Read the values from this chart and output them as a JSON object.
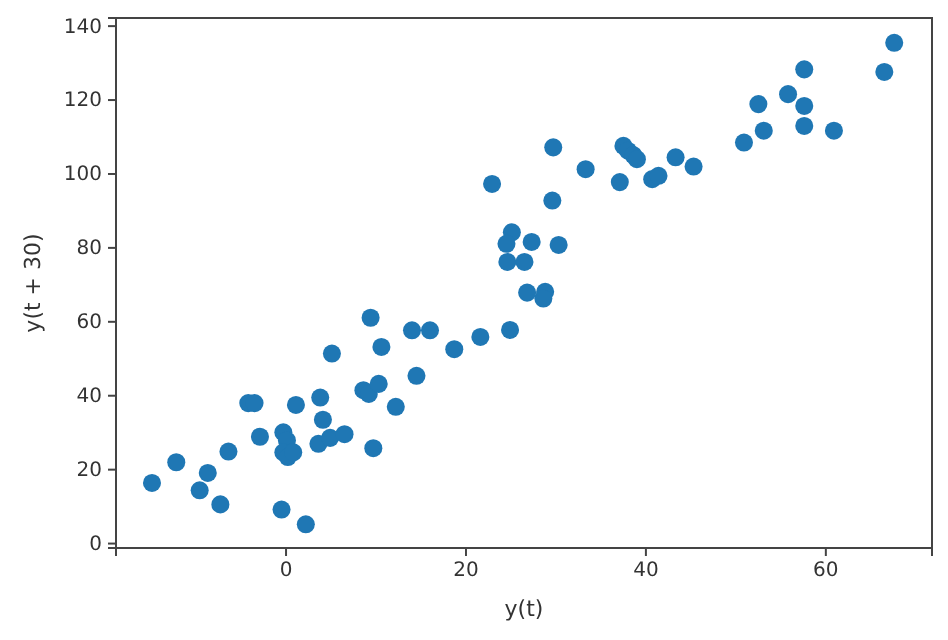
{
  "chart_data": {
    "type": "scatter",
    "xlabel": "y(t)",
    "ylabel": "y(t + 30)",
    "xlim": [
      -18.9,
      71.8
    ],
    "ylim": [
      -1.2,
      142.2
    ],
    "xticks": [
      0,
      20,
      40,
      60
    ],
    "yticks": [
      0,
      20,
      40,
      60,
      80,
      100,
      120,
      140
    ],
    "grid": false,
    "marker": "circle",
    "series": [
      {
        "color": "#1f77b4",
        "x": [
          -14.9,
          -12.2,
          -8.7,
          -9.6,
          -7.3,
          -6.4,
          -4.2,
          -3.5,
          -2.9,
          -0.5,
          -0.3,
          0.1,
          -0.3,
          0.2,
          0.8,
          2.2,
          1.1,
          3.8,
          4.1,
          3.6,
          4.9,
          6.5,
          5.1,
          9.4,
          8.6,
          9.2,
          10.3,
          10.6,
          9.7,
          12.2,
          14,
          14.5,
          16,
          18.7,
          21.6,
          24.9,
          22.9,
          29.7,
          29.6,
          33.3,
          37.1,
          37.5,
          38,
          38.6,
          39,
          40.7,
          41.4,
          43.3,
          45.3,
          50.9,
          53.1,
          52.5,
          55.8,
          57.6,
          57.6,
          57.6,
          60.9,
          66.5,
          67.6,
          25.1,
          24.5,
          27.3,
          30.3,
          24.6,
          26.5,
          26.8,
          28.8,
          28.6
        ],
        "values": [
          16.4,
          22,
          19.1,
          14.4,
          10.6,
          24.9,
          38,
          38,
          28.9,
          9.2,
          30.1,
          27.9,
          24.7,
          23.4,
          24.7,
          5.2,
          37.5,
          39.5,
          33.5,
          27,
          28.6,
          29.6,
          51.4,
          61.1,
          41.5,
          40.5,
          43.2,
          53.2,
          25.8,
          37,
          57.7,
          45.4,
          57.7,
          52.6,
          55.9,
          57.8,
          97.3,
          107.2,
          92.8,
          101.3,
          97.8,
          107.6,
          106.3,
          105.1,
          104,
          98.6,
          99.5,
          104.5,
          102,
          108.5,
          111.7,
          118.9,
          121.6,
          128.3,
          118.4,
          113,
          111.7,
          127.6,
          135.5,
          84.2,
          81.1,
          81.6,
          80.8,
          76.2,
          76.2,
          67.9,
          68.1,
          66.3
        ]
      }
    ]
  }
}
